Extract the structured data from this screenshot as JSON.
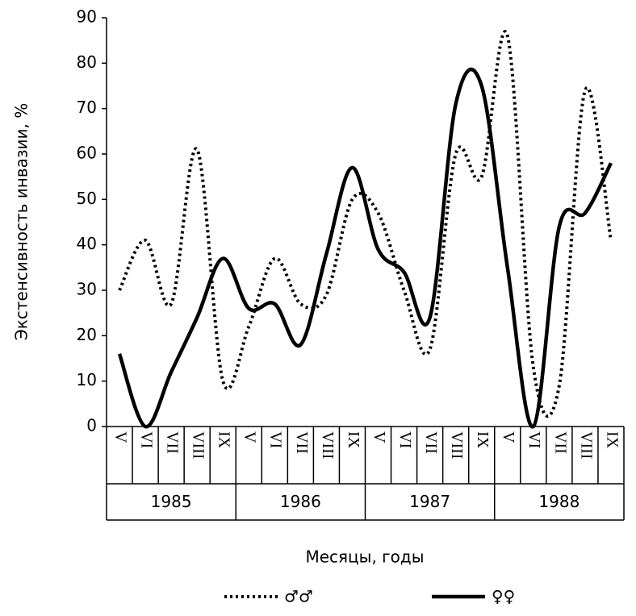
{
  "chart_data": {
    "type": "line",
    "y_label": "Экстенсивность инвазии, %",
    "x_label": "Месяцы, годы",
    "categories": [
      "V",
      "VI",
      "VII",
      "VIII",
      "IX",
      "V",
      "VI",
      "VII",
      "VIII",
      "IX",
      "V",
      "VI",
      "VII",
      "VIII",
      "IX",
      "V",
      "VI",
      "VII",
      "VIII",
      "IX"
    ],
    "groups": [
      "1985",
      "1986",
      "1987",
      "1988"
    ],
    "series": [
      {
        "name": "♂♂",
        "color": "#000000",
        "style": "dotted",
        "values": [
          30,
          41,
          27,
          61,
          10,
          22,
          37,
          27,
          29,
          50,
          47,
          30,
          17,
          60,
          55,
          86,
          13,
          9,
          74,
          41
        ]
      },
      {
        "name": "♀♀",
        "color": "#000000",
        "style": "solid",
        "values": [
          16,
          0,
          12,
          24,
          37,
          26,
          27,
          18,
          38,
          57,
          39,
          34,
          24,
          71,
          75,
          35,
          0,
          44,
          47,
          58
        ]
      }
    ],
    "ylim": [
      0,
      90
    ],
    "yticks": [
      0,
      10,
      20,
      30,
      40,
      50,
      60,
      70,
      80,
      90
    ],
    "legend": "bottom"
  }
}
